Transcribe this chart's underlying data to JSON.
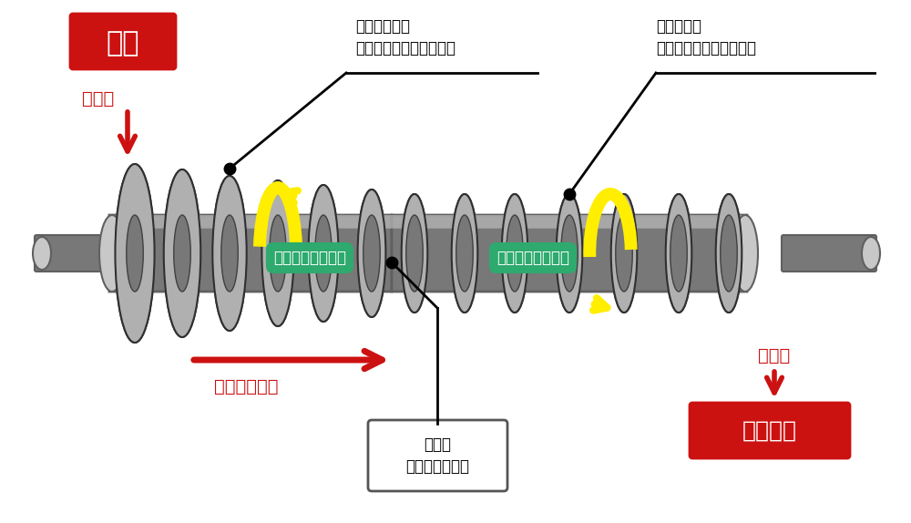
{
  "bg_color": "#ffffff",
  "red_color": "#cc1111",
  "dark_red": "#aa0000",
  "green_color": "#2eaa6e",
  "yellow_color": "#ffee00",
  "gray_main": "#909090",
  "gray_dark": "#606060",
  "gray_light": "#c8c8c8",
  "gray_mid": "#787878",
  "black": "#000000",
  "white": "#ffffff",
  "label_sludge": "汚泥",
  "label_inlet": "流入口",
  "label_outlet": "排出口",
  "label_direction": "汚泥進行方向",
  "label_taper": "テーパスクリュー",
  "label_plug": "プラグスクリュー",
  "label_switchpos": "回転が\n切り替わる位置",
  "label_dewatered": "脱水汚泥",
  "label_ccw": "反時計回りで\n汚泥排出となる羽根形状",
  "label_cw": "時計回りで\n汚泥排出となる羽根形状",
  "figsize": [
    10.0,
    5.74
  ],
  "dpi": 100
}
